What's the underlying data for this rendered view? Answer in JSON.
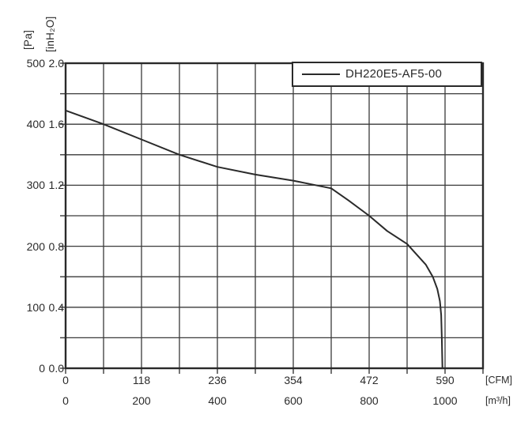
{
  "chart": {
    "legend": {
      "label": "DH220E5-AF5-00"
    },
    "y_axis": {
      "unit_pa": "[Pa]",
      "unit_inh2o": "[inH₂O]",
      "pa_ticks": [
        "500",
        "400",
        "300",
        "200",
        "100",
        "0"
      ],
      "inh2o_ticks": [
        "2.0",
        "1.6",
        "1.2",
        "0.8",
        "0.4",
        "0.0"
      ]
    },
    "x_axis": {
      "unit_cfm": "[CFM]",
      "unit_m3h": "[m³/h]",
      "cfm_ticks": [
        "0",
        "118",
        "236",
        "354",
        "472",
        "590"
      ],
      "m3h_ticks": [
        "0",
        "200",
        "400",
        "600",
        "800",
        "1000"
      ]
    }
  },
  "chart_data": {
    "type": "line",
    "title": "",
    "legend_position": "top-right",
    "grid": true,
    "x_axis_primary_unit": "CFM",
    "x_axis_secondary_unit": "m³/h",
    "y_axis_primary_unit": "Pa",
    "y_axis_secondary_unit": "inH₂O",
    "x_range_cfm": [
      0,
      649
    ],
    "y_range_inh2o": [
      0,
      2.0
    ],
    "x_gridline_step_cfm": 59,
    "y_gridline_step_inh2o": 0.2,
    "x_tick_labels_cfm": [
      0,
      118,
      236,
      354,
      472,
      590
    ],
    "x_tick_labels_m3h": [
      0,
      200,
      400,
      600,
      800,
      1000
    ],
    "y_tick_labels_pa": [
      500,
      400,
      300,
      200,
      100,
      0
    ],
    "y_tick_labels_inh2o": [
      2.0,
      1.6,
      1.2,
      0.8,
      0.4,
      0.0
    ],
    "series": [
      {
        "name": "DH220E5-AF5-00",
        "x_cfm": [
          0,
          59,
          118,
          177,
          236,
          295,
          354,
          413,
          440,
          472,
          500,
          531,
          545,
          560,
          571,
          578,
          582,
          584,
          585,
          586
        ],
        "y_inh2o": [
          1.69,
          1.6,
          1.5,
          1.4,
          1.32,
          1.27,
          1.23,
          1.18,
          1.1,
          1.0,
          0.9,
          0.815,
          0.75,
          0.68,
          0.6,
          0.52,
          0.44,
          0.35,
          0.2,
          0.0
        ],
        "y_pa": [
          423,
          400,
          375,
          350,
          330,
          318,
          308,
          295,
          275,
          250,
          225,
          204,
          188,
          170,
          150,
          130,
          110,
          88,
          50,
          0
        ]
      }
    ],
    "colors": {
      "line": "#2a2a2a",
      "grid": "#3a3a3a",
      "frame": "#2a2a2a",
      "text": "#2a2a2a",
      "background": "#ffffff"
    }
  }
}
